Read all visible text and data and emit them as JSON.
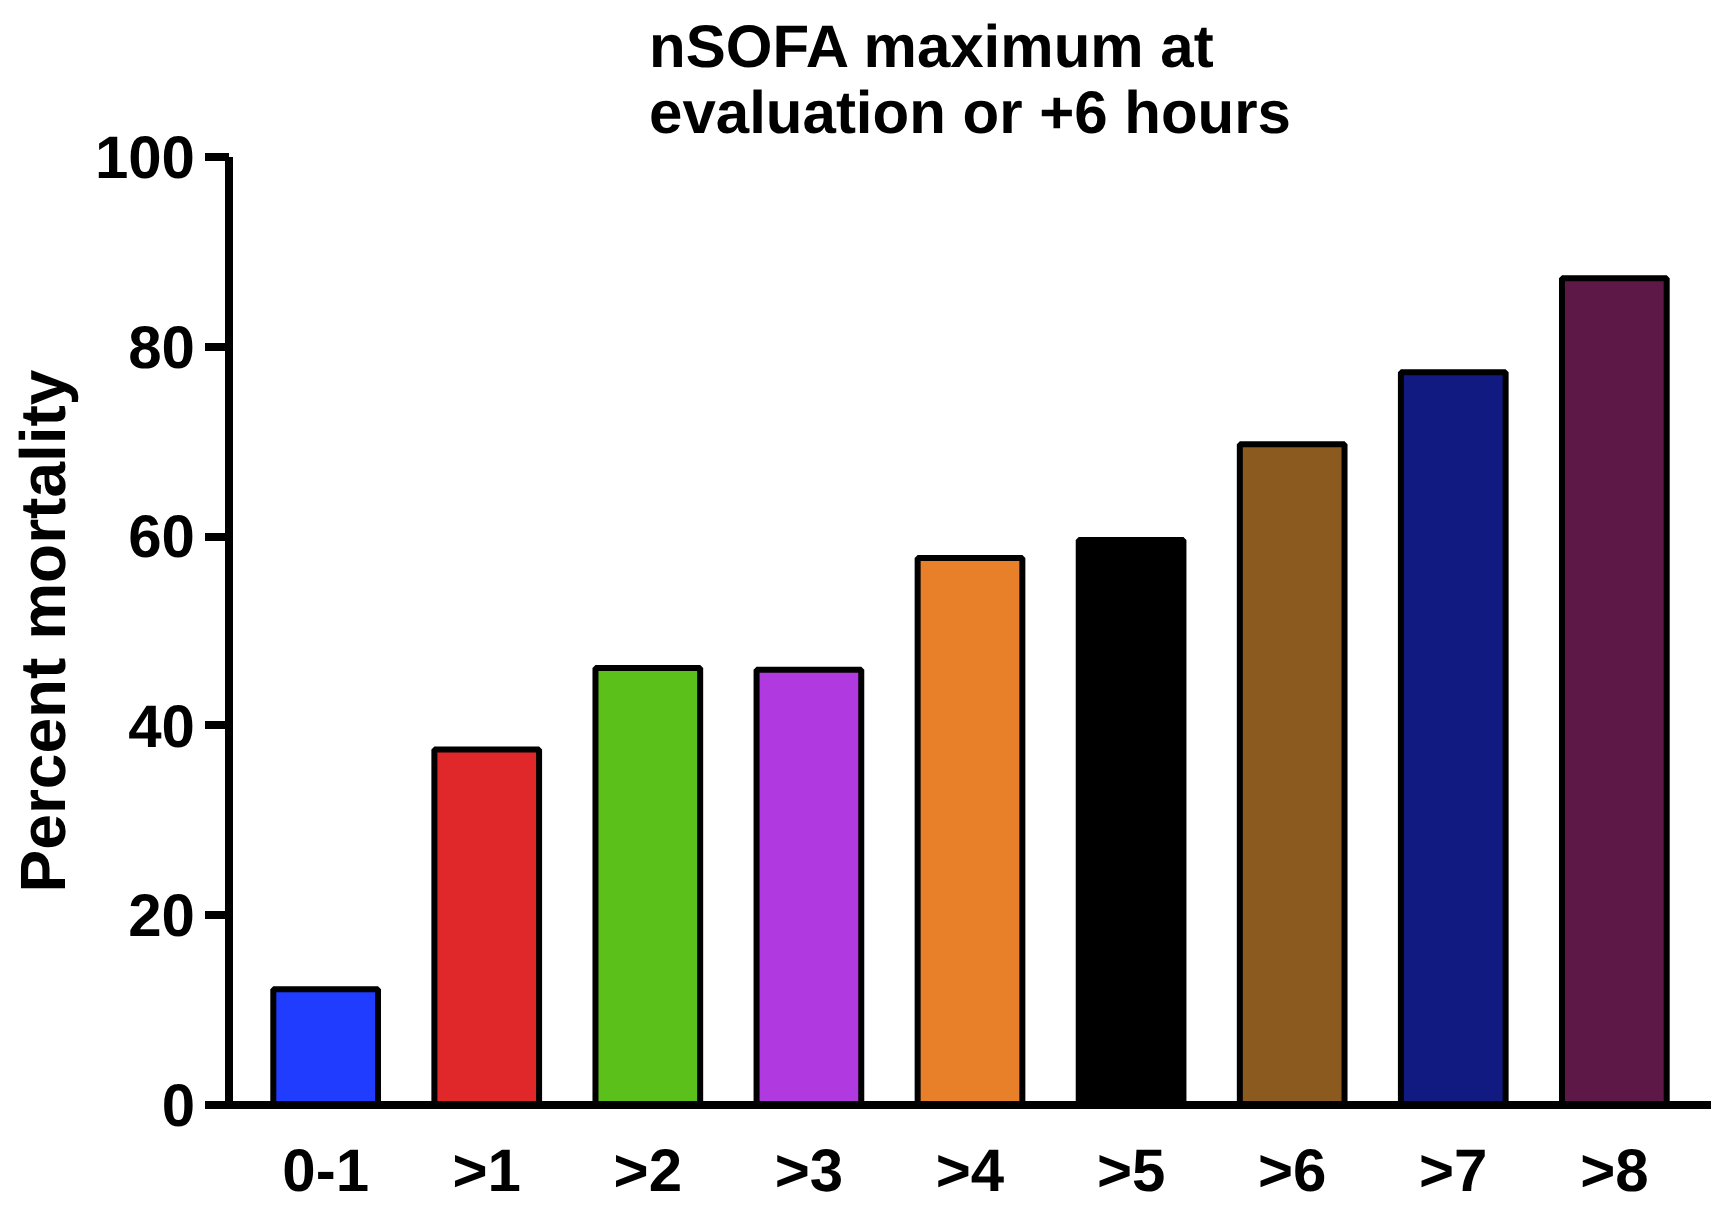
{
  "chart_data": {
    "type": "bar",
    "title": "nSOFA maximum at evaluation or +6 hours",
    "ylabel": "Percent mortality",
    "categories": [
      "0-1",
      ">1",
      ">2",
      ">3",
      ">4",
      ">5",
      ">6",
      ">7",
      ">8"
    ],
    "values": [
      12.2,
      37.5,
      46.1,
      45.9,
      57.7,
      59.6,
      69.7,
      77.3,
      87.2
    ],
    "colors": [
      "#1f3cff",
      "#e0282a",
      "#5cc01a",
      "#b03ae0",
      "#e8802a",
      "#000000",
      "#8a5a1e",
      "#101a80",
      "#5e1848"
    ],
    "ylim": [
      0,
      100
    ],
    "yticks": [
      0,
      20,
      40,
      60,
      80,
      100
    ],
    "grid": false
  }
}
